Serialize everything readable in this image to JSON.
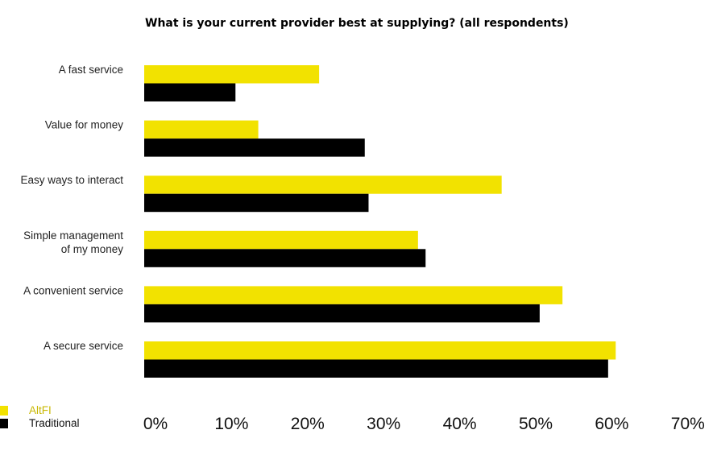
{
  "chart_data": {
    "type": "bar",
    "orientation": "horizontal",
    "title": "What is your current provider best at supplying? (all respondents)",
    "categories": [
      [
        "A fast service"
      ],
      [
        "Value for money"
      ],
      [
        "Easy ways to interact"
      ],
      [
        "Simple management",
        "of my money"
      ],
      [
        "A convenient service"
      ],
      [
        "A secure service"
      ]
    ],
    "series": [
      {
        "name": "AltFI",
        "color": "#f2e200",
        "values": [
          23,
          15,
          47,
          36,
          55,
          62
        ]
      },
      {
        "name": "Traditional",
        "color": "#000000",
        "values": [
          12,
          29,
          29.5,
          37,
          52,
          61
        ]
      }
    ],
    "xlim": [
      0,
      70
    ],
    "ticks": [
      "0%",
      "10%",
      "20%",
      "30%",
      "40%",
      "50%",
      "60%",
      "70%"
    ],
    "legend_position": "bottom-left",
    "grid": false,
    "legend_text_colors": {
      "AltFI": "#c9b800",
      "Traditional": "#111111"
    }
  }
}
